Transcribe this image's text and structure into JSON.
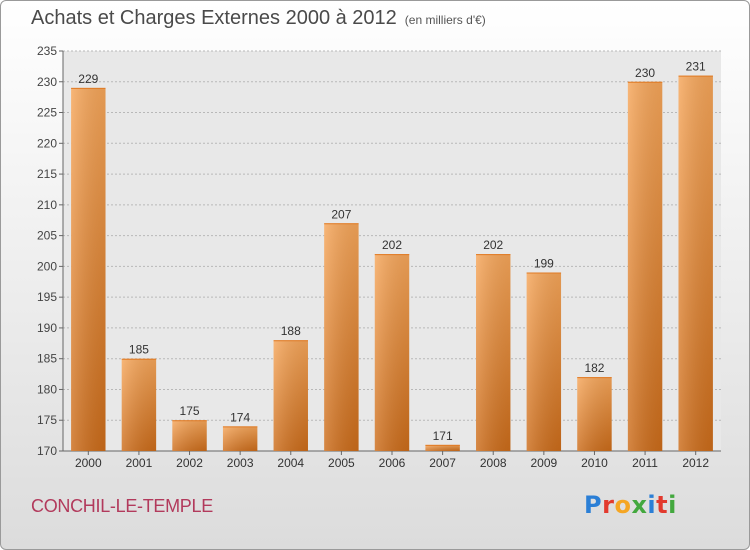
{
  "header": {
    "title": "Achats et Charges Externes 2000 à 2012",
    "unit": "(en milliers d'€)"
  },
  "footer": {
    "commune": "CONCHIL-LE-TEMPLE",
    "logo": "Proxiti"
  },
  "colors": {
    "bar_light": "#f6a65a",
    "bar_dark": "#cc6c1a",
    "plot_bg": "#e8e8e8"
  },
  "chart_data": {
    "type": "bar",
    "title": "Achats et Charges Externes 2000 à 2012",
    "subtitle": "(en milliers d'€)",
    "categories": [
      "2000",
      "2001",
      "2002",
      "2003",
      "2004",
      "2005",
      "2006",
      "2007",
      "2008",
      "2009",
      "2010",
      "2011",
      "2012"
    ],
    "values": [
      229,
      185,
      175,
      174,
      188,
      207,
      202,
      171,
      202,
      199,
      182,
      230,
      231
    ],
    "ylim": [
      170,
      235
    ],
    "yticks": [
      170,
      175,
      180,
      185,
      190,
      195,
      200,
      205,
      210,
      215,
      220,
      225,
      230,
      235
    ],
    "grid": true,
    "legend": "none"
  }
}
